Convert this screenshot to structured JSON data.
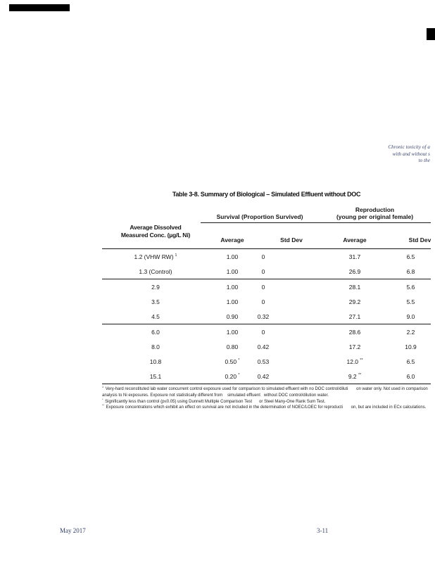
{
  "running_header": {
    "line1": "Chronic toxicity of a",
    "line2": "with and without s",
    "line3": "to the"
  },
  "table": {
    "title": "Table 3-8. Summary of Biological – Simulated Effluent without DOC",
    "header": {
      "col1_line1": "Average Dissolved",
      "col1_line2": "Measured Conc. (µg/L Ni)",
      "group_survival": "Survival (Proportion Survived)",
      "group_repro_line1": "Reproduction",
      "group_repro_line2": "(young per original female)",
      "sub": [
        "Average",
        "Std Dev",
        "Average",
        "Std Dev"
      ]
    },
    "rows": [
      {
        "conc": "1.2 (VHW RW)",
        "sup": "1",
        "values": [
          "1.00",
          "0",
          "31.7",
          "6.5"
        ],
        "group_end": false
      },
      {
        "conc": "1.3 (Control)",
        "sup": "",
        "values": [
          "1.00",
          "0",
          "26.9",
          "6.8"
        ],
        "group_end": true
      },
      {
        "conc": "2.9",
        "sup": "",
        "values": [
          "1.00",
          "0",
          "28.1",
          "5.6"
        ],
        "group_end": false
      },
      {
        "conc": "3.5",
        "sup": "",
        "values": [
          "1.00",
          "0",
          "29.2",
          "5.5"
        ],
        "group_end": false
      },
      {
        "conc": "4.5",
        "sup": "",
        "values": [
          "0.90",
          "0.32",
          "27.1",
          "9.0"
        ],
        "group_end": true
      },
      {
        "conc": "6.0",
        "sup": "",
        "values": [
          "1.00",
          "0",
          "28.6",
          "2.2"
        ],
        "group_end": false
      },
      {
        "conc": "8.0",
        "sup": "",
        "values": [
          "0.80",
          "0.42",
          "17.2",
          "10.9"
        ],
        "group_end": false
      },
      {
        "conc": "10.8",
        "sup": "",
        "values": [
          "0.50 *",
          "0.53",
          "12.0 **",
          "6.5"
        ],
        "group_end": false
      },
      {
        "conc": "15.1",
        "sup": "",
        "values": [
          "0.20 *",
          "0.42",
          "9.2 **",
          "6.0"
        ],
        "group_end": false
      }
    ],
    "footnotes": [
      {
        "sup": "1",
        "text": "Very-hard reconstituted lab water concurrent control exposure used for comparison to simulated effluent with no DOC control/diluti       on water only. Not used in comparison"
      },
      {
        "sup": "",
        "text": "analysis to Ni exposures. Exposure not statistically different from    simulated effluent   without DOC control/dilution water."
      },
      {
        "sup": "*",
        "text": "Significantly less than control (p≤0.05) using Dunnett Multiple Comparison Test      or Steel Many-One Rank Sum Test."
      },
      {
        "sup": "**",
        "text": "Exposure concentrations which exhibit an effect on survival are not included in the determination of NOEC/LOEC for reproducti       on, but are included in ECx calculations."
      }
    ]
  },
  "footer": {
    "date": "May 2017",
    "page_number": "3-11"
  }
}
